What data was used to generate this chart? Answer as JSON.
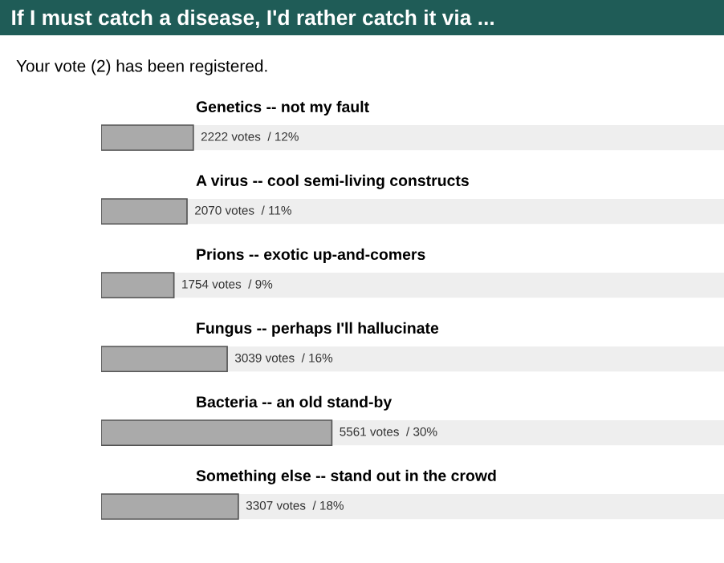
{
  "chart_data": {
    "type": "bar",
    "orientation": "horizontal",
    "title": "If I must catch a disease, I'd rather catch it via ...",
    "subtitle": "Your vote (2) has been registered.",
    "categories": [
      "Genetics -- not my fault",
      "A virus -- cool semi-living constructs",
      "Prions -- exotic up-and-comers",
      "Fungus -- perhaps I'll hallucinate",
      "Bacteria -- an old stand-by",
      "Something else -- stand out in the crowd"
    ],
    "values": [
      2222,
      2070,
      1754,
      3039,
      5561,
      3307
    ],
    "value_labels": [
      "2222 votes  / 12%",
      "2070 votes  / 11%",
      "1754 votes  / 9%",
      "3039 votes  / 16%",
      "5561 votes  / 30%",
      "3307 votes  / 18%"
    ],
    "color": "#aaaaaa"
  }
}
